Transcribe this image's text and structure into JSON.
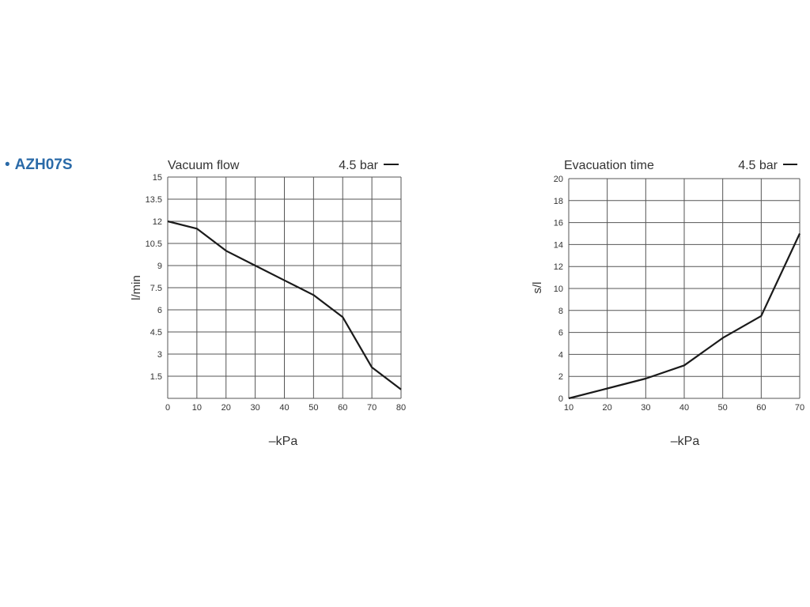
{
  "product": {
    "bullet": "•",
    "name": "AZH07S"
  },
  "colors": {
    "product": "#2a6aa8",
    "line": "#1a1a1a",
    "grid": "#555555"
  },
  "chart_data": [
    {
      "type": "line",
      "title": "Vacuum flow",
      "legend": "4.5 bar",
      "legend_position": "top-right",
      "xlabel": "–kPa",
      "ylabel": "l/min",
      "xlim": [
        0,
        80
      ],
      "ylim": [
        0,
        15
      ],
      "x_ticks": [
        "0",
        "10",
        "20",
        "30",
        "40",
        "50",
        "60",
        "70",
        "80"
      ],
      "y_ticks": [
        "1.5",
        "3",
        "4.5",
        "6",
        "7.5",
        "9",
        "10.5",
        "12",
        "13.5",
        "15"
      ],
      "grid": true,
      "series": [
        {
          "name": "4.5 bar",
          "x": [
            0,
            10,
            20,
            30,
            40,
            50,
            60,
            70,
            80
          ],
          "y": [
            12.0,
            11.5,
            10.0,
            9.0,
            8.0,
            7.0,
            5.5,
            2.1,
            0.6
          ]
        }
      ]
    },
    {
      "type": "line",
      "title": "Evacuation time",
      "legend": "4.5 bar",
      "legend_position": "top-right",
      "xlabel": "–kPa",
      "ylabel": "s/l",
      "xlim": [
        10,
        70
      ],
      "ylim": [
        0,
        20
      ],
      "x_ticks": [
        "10",
        "20",
        "30",
        "40",
        "50",
        "60",
        "70"
      ],
      "y_ticks": [
        "0",
        "2",
        "4",
        "6",
        "8",
        "10",
        "12",
        "14",
        "16",
        "18",
        "20"
      ],
      "grid": true,
      "series": [
        {
          "name": "4.5 bar",
          "x": [
            10,
            20,
            30,
            40,
            50,
            60,
            70
          ],
          "y": [
            0.0,
            0.9,
            1.8,
            3.0,
            5.5,
            7.5,
            15.0
          ]
        }
      ]
    }
  ]
}
